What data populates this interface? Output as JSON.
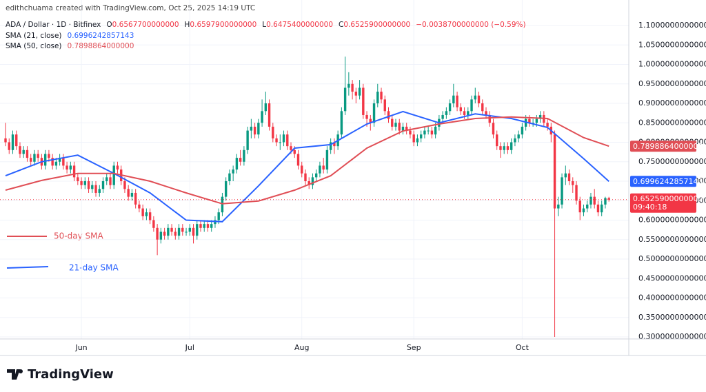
{
  "chart_data": {
    "type": "candlestick",
    "credit": "edithchuama created with TradingView.com, Oct 25, 2025 14:19 UTC",
    "symbol": "ADA / Dollar · 1D · Bitfinex",
    "ohlc_legend": [
      {
        "key": "O",
        "text": "0.6567700000000"
      },
      {
        "key": "H",
        "text": "0.6597900000000"
      },
      {
        "key": "L",
        "text": "0.6475400000000"
      },
      {
        "key": "C",
        "text": "0.6525900000000"
      }
    ],
    "change_text": "−0.0038700000000 (−0.59%)",
    "last_price_label": "0.6525900000000",
    "countdown": "09:40:18",
    "brand": "TradingView",
    "up_color": "#089981",
    "down_color": "#f23645",
    "xlim": [
      -1.53,
      172.5
    ],
    "ylim": [
      0.2947,
      1.1655
    ],
    "xticks": [
      {
        "value": 21,
        "label": "Jun"
      },
      {
        "value": 51,
        "label": "Jul"
      },
      {
        "value": 82,
        "label": "Aug"
      },
      {
        "value": 113,
        "label": "Sep"
      },
      {
        "value": 143,
        "label": "Oct"
      }
    ],
    "yticks": [
      {
        "value": 0.3,
        "label": "0.3000000000000"
      },
      {
        "value": 0.35,
        "label": "0.3500000000000"
      },
      {
        "value": 0.4,
        "label": "0.4000000000000"
      },
      {
        "value": 0.45,
        "label": "0.4500000000000"
      },
      {
        "value": 0.5,
        "label": "0.5000000000000"
      },
      {
        "value": 0.55,
        "label": "0.5500000000000"
      },
      {
        "value": 0.6,
        "label": "0.6000000000000"
      },
      {
        "value": 0.65,
        "label": "0.6500000000000"
      },
      {
        "value": 0.7,
        "label": "0.7000000000000"
      },
      {
        "value": 0.75,
        "label": "0.7500000000000"
      },
      {
        "value": 0.8,
        "label": "0.8000000000000"
      },
      {
        "value": 0.85,
        "label": "0.8500000000000"
      },
      {
        "value": 0.9,
        "label": "0.9000000000000"
      },
      {
        "value": 0.95,
        "label": "0.9500000000000"
      },
      {
        "value": 1.0,
        "label": "1.0000000000000"
      },
      {
        "value": 1.05,
        "label": "1.0500000000000"
      },
      {
        "value": 1.1,
        "label": "1.1000000000000"
      }
    ],
    "grid": true,
    "ohlc": [
      [
        0.81,
        0.85,
        0.79,
        0.8
      ],
      [
        0.8,
        0.81,
        0.77,
        0.78
      ],
      [
        0.78,
        0.83,
        0.77,
        0.82
      ],
      [
        0.82,
        0.83,
        0.78,
        0.79
      ],
      [
        0.79,
        0.8,
        0.76,
        0.77
      ],
      [
        0.77,
        0.79,
        0.76,
        0.78
      ],
      [
        0.78,
        0.79,
        0.75,
        0.76
      ],
      [
        0.76,
        0.77,
        0.74,
        0.75
      ],
      [
        0.75,
        0.78,
        0.74,
        0.77
      ],
      [
        0.77,
        0.78,
        0.75,
        0.76
      ],
      [
        0.76,
        0.77,
        0.73,
        0.74
      ],
      [
        0.74,
        0.78,
        0.73,
        0.77
      ],
      [
        0.77,
        0.78,
        0.75,
        0.76
      ],
      [
        0.76,
        0.77,
        0.73,
        0.74
      ],
      [
        0.74,
        0.76,
        0.73,
        0.75
      ],
      [
        0.75,
        0.77,
        0.74,
        0.76
      ],
      [
        0.76,
        0.77,
        0.73,
        0.74
      ],
      [
        0.74,
        0.75,
        0.72,
        0.73
      ],
      [
        0.73,
        0.75,
        0.72,
        0.74
      ],
      [
        0.74,
        0.75,
        0.7,
        0.71
      ],
      [
        0.71,
        0.72,
        0.69,
        0.7
      ],
      [
        0.7,
        0.71,
        0.68,
        0.69
      ],
      [
        0.69,
        0.71,
        0.68,
        0.7
      ],
      [
        0.7,
        0.71,
        0.67,
        0.68
      ],
      [
        0.68,
        0.7,
        0.67,
        0.69
      ],
      [
        0.69,
        0.7,
        0.66,
        0.67
      ],
      [
        0.67,
        0.69,
        0.66,
        0.68
      ],
      [
        0.68,
        0.71,
        0.67,
        0.7
      ],
      [
        0.7,
        0.72,
        0.69,
        0.71
      ],
      [
        0.71,
        0.72,
        0.68,
        0.69
      ],
      [
        0.69,
        0.75,
        0.68,
        0.74
      ],
      [
        0.74,
        0.75,
        0.72,
        0.73
      ],
      [
        0.73,
        0.74,
        0.69,
        0.7
      ],
      [
        0.7,
        0.71,
        0.67,
        0.68
      ],
      [
        0.68,
        0.69,
        0.65,
        0.66
      ],
      [
        0.66,
        0.68,
        0.65,
        0.67
      ],
      [
        0.67,
        0.68,
        0.63,
        0.64
      ],
      [
        0.64,
        0.65,
        0.62,
        0.63
      ],
      [
        0.63,
        0.64,
        0.6,
        0.61
      ],
      [
        0.61,
        0.63,
        0.6,
        0.62
      ],
      [
        0.62,
        0.63,
        0.59,
        0.6
      ],
      [
        0.6,
        0.61,
        0.57,
        0.58
      ],
      [
        0.58,
        0.59,
        0.51,
        0.55
      ],
      [
        0.55,
        0.58,
        0.54,
        0.57
      ],
      [
        0.57,
        0.58,
        0.55,
        0.56
      ],
      [
        0.56,
        0.59,
        0.55,
        0.58
      ],
      [
        0.58,
        0.59,
        0.56,
        0.57
      ],
      [
        0.57,
        0.58,
        0.55,
        0.56
      ],
      [
        0.56,
        0.59,
        0.55,
        0.58
      ],
      [
        0.58,
        0.59,
        0.56,
        0.57
      ],
      [
        0.57,
        0.58,
        0.56,
        0.57
      ],
      [
        0.57,
        0.59,
        0.56,
        0.58
      ],
      [
        0.58,
        0.59,
        0.54,
        0.56
      ],
      [
        0.56,
        0.6,
        0.55,
        0.59
      ],
      [
        0.59,
        0.6,
        0.57,
        0.58
      ],
      [
        0.58,
        0.6,
        0.57,
        0.59
      ],
      [
        0.59,
        0.6,
        0.57,
        0.58
      ],
      [
        0.58,
        0.6,
        0.57,
        0.59
      ],
      [
        0.59,
        0.61,
        0.58,
        0.6
      ],
      [
        0.6,
        0.63,
        0.59,
        0.62
      ],
      [
        0.62,
        0.67,
        0.61,
        0.66
      ],
      [
        0.66,
        0.71,
        0.65,
        0.7
      ],
      [
        0.7,
        0.73,
        0.69,
        0.72
      ],
      [
        0.72,
        0.74,
        0.7,
        0.73
      ],
      [
        0.73,
        0.77,
        0.72,
        0.76
      ],
      [
        0.76,
        0.78,
        0.74,
        0.75
      ],
      [
        0.75,
        0.79,
        0.74,
        0.78
      ],
      [
        0.78,
        0.84,
        0.77,
        0.83
      ],
      [
        0.83,
        0.86,
        0.81,
        0.84
      ],
      [
        0.84,
        0.85,
        0.81,
        0.82
      ],
      [
        0.82,
        0.86,
        0.81,
        0.85
      ],
      [
        0.85,
        0.91,
        0.84,
        0.88
      ],
      [
        0.88,
        0.93,
        0.87,
        0.9
      ],
      [
        0.9,
        0.91,
        0.83,
        0.84
      ],
      [
        0.84,
        0.85,
        0.8,
        0.81
      ],
      [
        0.81,
        0.82,
        0.79,
        0.8
      ],
      [
        0.8,
        0.82,
        0.78,
        0.8
      ],
      [
        0.8,
        0.83,
        0.79,
        0.82
      ],
      [
        0.82,
        0.83,
        0.78,
        0.79
      ],
      [
        0.79,
        0.8,
        0.77,
        0.78
      ],
      [
        0.78,
        0.79,
        0.76,
        0.77
      ],
      [
        0.77,
        0.78,
        0.73,
        0.74
      ],
      [
        0.74,
        0.75,
        0.71,
        0.72
      ],
      [
        0.72,
        0.73,
        0.69,
        0.7
      ],
      [
        0.7,
        0.71,
        0.68,
        0.69
      ],
      [
        0.69,
        0.72,
        0.68,
        0.71
      ],
      [
        0.71,
        0.73,
        0.7,
        0.72
      ],
      [
        0.72,
        0.75,
        0.71,
        0.74
      ],
      [
        0.74,
        0.76,
        0.72,
        0.73
      ],
      [
        0.73,
        0.79,
        0.72,
        0.78
      ],
      [
        0.78,
        0.81,
        0.77,
        0.8
      ],
      [
        0.8,
        0.81,
        0.77,
        0.79
      ],
      [
        0.79,
        0.83,
        0.78,
        0.82
      ],
      [
        0.82,
        0.89,
        0.81,
        0.88
      ],
      [
        0.88,
        1.02,
        0.87,
        0.94
      ],
      [
        0.94,
        0.98,
        0.92,
        0.95
      ],
      [
        0.95,
        0.96,
        0.91,
        0.93
      ],
      [
        0.93,
        0.94,
        0.9,
        0.92
      ],
      [
        0.92,
        0.96,
        0.91,
        0.94
      ],
      [
        0.94,
        0.95,
        0.86,
        0.87
      ],
      [
        0.87,
        0.88,
        0.84,
        0.86
      ],
      [
        0.86,
        0.87,
        0.83,
        0.85
      ],
      [
        0.85,
        0.91,
        0.84,
        0.9
      ],
      [
        0.9,
        0.95,
        0.89,
        0.93
      ],
      [
        0.93,
        0.94,
        0.9,
        0.91
      ],
      [
        0.91,
        0.92,
        0.87,
        0.88
      ],
      [
        0.88,
        0.89,
        0.85,
        0.86
      ],
      [
        0.86,
        0.87,
        0.83,
        0.84
      ],
      [
        0.84,
        0.86,
        0.83,
        0.85
      ],
      [
        0.85,
        0.86,
        0.82,
        0.83
      ],
      [
        0.83,
        0.85,
        0.82,
        0.84
      ],
      [
        0.84,
        0.85,
        0.82,
        0.83
      ],
      [
        0.83,
        0.84,
        0.81,
        0.82
      ],
      [
        0.82,
        0.83,
        0.79,
        0.8
      ],
      [
        0.8,
        0.82,
        0.79,
        0.81
      ],
      [
        0.81,
        0.83,
        0.8,
        0.82
      ],
      [
        0.82,
        0.84,
        0.81,
        0.83
      ],
      [
        0.83,
        0.84,
        0.82,
        0.83
      ],
      [
        0.83,
        0.84,
        0.81,
        0.82
      ],
      [
        0.82,
        0.85,
        0.81,
        0.84
      ],
      [
        0.84,
        0.87,
        0.83,
        0.86
      ],
      [
        0.86,
        0.88,
        0.85,
        0.87
      ],
      [
        0.87,
        0.89,
        0.86,
        0.88
      ],
      [
        0.88,
        0.91,
        0.87,
        0.9
      ],
      [
        0.9,
        0.95,
        0.89,
        0.92
      ],
      [
        0.92,
        0.93,
        0.88,
        0.89
      ],
      [
        0.89,
        0.9,
        0.87,
        0.88
      ],
      [
        0.88,
        0.89,
        0.86,
        0.87
      ],
      [
        0.87,
        0.89,
        0.86,
        0.88
      ],
      [
        0.88,
        0.92,
        0.87,
        0.91
      ],
      [
        0.91,
        0.94,
        0.9,
        0.92
      ],
      [
        0.92,
        0.93,
        0.89,
        0.9
      ],
      [
        0.9,
        0.91,
        0.87,
        0.88
      ],
      [
        0.88,
        0.89,
        0.86,
        0.87
      ],
      [
        0.87,
        0.88,
        0.84,
        0.85
      ],
      [
        0.85,
        0.86,
        0.81,
        0.82
      ],
      [
        0.82,
        0.83,
        0.78,
        0.79
      ],
      [
        0.79,
        0.8,
        0.76,
        0.78
      ],
      [
        0.78,
        0.8,
        0.77,
        0.79
      ],
      [
        0.79,
        0.8,
        0.77,
        0.78
      ],
      [
        0.78,
        0.81,
        0.77,
        0.8
      ],
      [
        0.8,
        0.82,
        0.79,
        0.81
      ],
      [
        0.81,
        0.83,
        0.8,
        0.82
      ],
      [
        0.82,
        0.85,
        0.81,
        0.84
      ],
      [
        0.84,
        0.87,
        0.83,
        0.86
      ],
      [
        0.86,
        0.87,
        0.84,
        0.85
      ],
      [
        0.85,
        0.86,
        0.84,
        0.85
      ],
      [
        0.85,
        0.87,
        0.84,
        0.86
      ],
      [
        0.86,
        0.88,
        0.85,
        0.87
      ],
      [
        0.87,
        0.88,
        0.84,
        0.85
      ],
      [
        0.85,
        0.86,
        0.83,
        0.84
      ],
      [
        0.84,
        0.85,
        0.8,
        0.82
      ],
      [
        0.82,
        0.83,
        0.3,
        0.63
      ],
      [
        0.63,
        0.66,
        0.61,
        0.64
      ],
      [
        0.64,
        0.72,
        0.63,
        0.71
      ],
      [
        0.71,
        0.74,
        0.69,
        0.72
      ],
      [
        0.72,
        0.73,
        0.69,
        0.7
      ],
      [
        0.7,
        0.71,
        0.67,
        0.69
      ],
      [
        0.69,
        0.7,
        0.64,
        0.65
      ],
      [
        0.65,
        0.66,
        0.6,
        0.62
      ],
      [
        0.62,
        0.64,
        0.61,
        0.63
      ],
      [
        0.63,
        0.65,
        0.62,
        0.64
      ],
      [
        0.64,
        0.67,
        0.63,
        0.66
      ],
      [
        0.66,
        0.68,
        0.63,
        0.64
      ],
      [
        0.64,
        0.65,
        0.61,
        0.62
      ],
      [
        0.62,
        0.65,
        0.61,
        0.64
      ],
      [
        0.64,
        0.66,
        0.63,
        0.6567
      ],
      [
        0.65677,
        0.65979,
        0.64754,
        0.65259
      ]
    ],
    "series": [
      {
        "name": "SMA (21, close)",
        "value_text": "0.6996242857143",
        "last_label": "0.6996242857143",
        "color": "#2962ff",
        "x": [
          0,
          10,
          20,
          30,
          40,
          50,
          60,
          70,
          80,
          90,
          100,
          110,
          120,
          130,
          140,
          150,
          160,
          167
        ],
        "values": [
          0.714,
          0.75,
          0.767,
          0.72,
          0.67,
          0.6,
          0.596,
          0.688,
          0.785,
          0.794,
          0.847,
          0.879,
          0.85,
          0.873,
          0.861,
          0.838,
          0.758,
          0.6996
        ]
      },
      {
        "name": "SMA (50, close)",
        "value_text": "0.7898864000000",
        "last_label": "0.7898864000000",
        "color": "#e04e55",
        "x": [
          0,
          10,
          20,
          30,
          40,
          50,
          60,
          70,
          80,
          90,
          100,
          110,
          120,
          130,
          140,
          150,
          160,
          167
        ],
        "values": [
          0.677,
          0.702,
          0.72,
          0.72,
          0.7,
          0.67,
          0.642,
          0.649,
          0.677,
          0.714,
          0.785,
          0.829,
          0.847,
          0.861,
          0.865,
          0.861,
          0.812,
          0.7899
        ]
      }
    ],
    "annotations": [
      "50-day SMA",
      "21-day SMA"
    ]
  }
}
